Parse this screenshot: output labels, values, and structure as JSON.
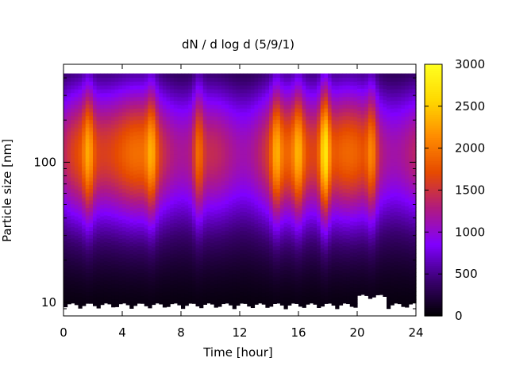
{
  "chart_data": {
    "type": "heatmap",
    "title": "dN / d log d (5/9/1)",
    "xlabel": "Time [hour]",
    "ylabel": "Particle size [nm]",
    "xlim": [
      0,
      24
    ],
    "xticks": [
      0,
      4,
      8,
      12,
      16,
      20,
      24
    ],
    "x_tick_labels": [
      "0",
      "4",
      "8",
      "12",
      "16",
      "20",
      "24"
    ],
    "ylim": [
      8,
      500
    ],
    "yscale": "log",
    "yticks": [
      10,
      100
    ],
    "y_tick_labels": [
      "10",
      "100"
    ],
    "colorbar": {
      "range": [
        0,
        3000
      ],
      "ticks": [
        0,
        500,
        1000,
        1500,
        2000,
        2500,
        3000
      ],
      "tick_labels": [
        "0",
        "500",
        "1000",
        "1500",
        "2000",
        "2500",
        "3000"
      ],
      "colors": [
        "#000000",
        "#3a0070",
        "#8000ff",
        "#b01a80",
        "#e64a00",
        "#ff8c00",
        "#ffd800",
        "#ffff20"
      ]
    },
    "grid": false,
    "mode_diameter_nm": 120,
    "peak_times_hour": [
      1.7,
      6,
      9.2,
      14.5,
      16,
      17.8,
      21
    ]
  }
}
